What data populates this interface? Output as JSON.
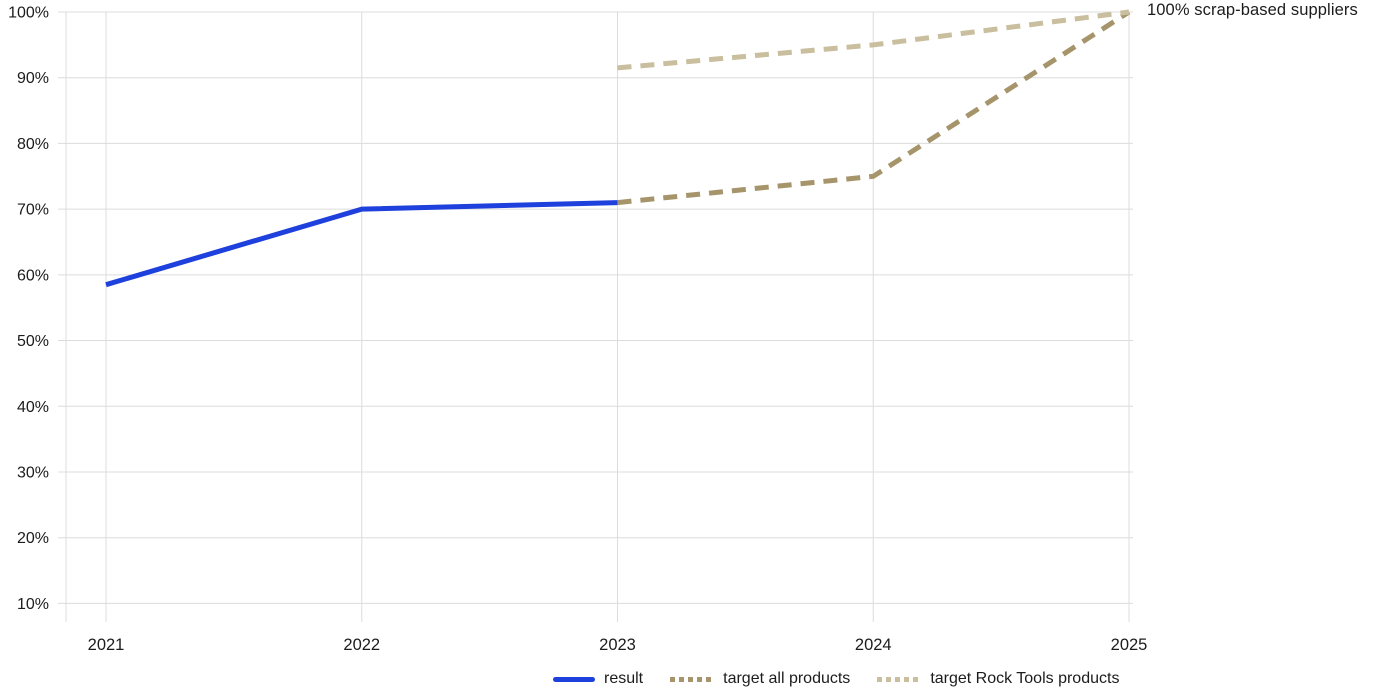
{
  "chart_data": {
    "type": "line",
    "title": "",
    "xlabel": "",
    "ylabel": "",
    "ylim": [
      10,
      100
    ],
    "grid": true,
    "legend_position": "bottom",
    "annotation": "100% scrap-based suppliers",
    "x_ticks": [
      {
        "value": 2021,
        "label": "2021"
      },
      {
        "value": 2022,
        "label": "2022"
      },
      {
        "value": 2023,
        "label": "2023"
      },
      {
        "value": 2024,
        "label": "2024"
      },
      {
        "value": 2025,
        "label": "2025"
      }
    ],
    "y_ticks": [
      {
        "value": 100,
        "label": "100%"
      },
      {
        "value": 90,
        "label": "90%"
      },
      {
        "value": 80,
        "label": "80%"
      },
      {
        "value": 70,
        "label": "70%"
      },
      {
        "value": 60,
        "label": "60%"
      },
      {
        "value": 50,
        "label": "50%"
      },
      {
        "value": 40,
        "label": "40%"
      },
      {
        "value": 30,
        "label": "30%"
      },
      {
        "value": 20,
        "label": "20%"
      },
      {
        "value": 10,
        "label": "10%"
      }
    ],
    "series": [
      {
        "name": "result",
        "style": "solid",
        "color": "#1e40dc",
        "points": [
          [
            2021,
            58.5
          ],
          [
            2022,
            70
          ],
          [
            2023,
            71
          ]
        ]
      },
      {
        "name": "target all products",
        "style": "dashed",
        "color": "#a6946b",
        "points": [
          [
            2023,
            71
          ],
          [
            2024,
            75
          ],
          [
            2025,
            100
          ]
        ]
      },
      {
        "name": "target Rock Tools products",
        "style": "dashed",
        "color": "#c9bf9e",
        "points": [
          [
            2023,
            91.5
          ],
          [
            2024,
            95
          ],
          [
            2025,
            100
          ]
        ]
      }
    ],
    "colors": {
      "gridline": "#dcdcdc",
      "text": "#1c1c1c"
    }
  }
}
